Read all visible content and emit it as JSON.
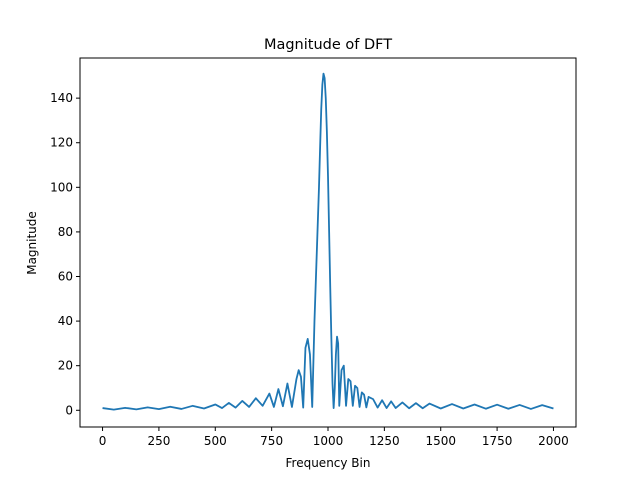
{
  "chart_data": {
    "type": "line",
    "title": "Magnitude of DFT",
    "xlabel": "Frequency Bin",
    "ylabel": "Magnitude",
    "xlim": [
      -100,
      2100
    ],
    "ylim": [
      -7.5,
      158
    ],
    "xticks": [
      0,
      250,
      500,
      750,
      1000,
      1250,
      1500,
      1750,
      2000
    ],
    "yticks": [
      0,
      20,
      40,
      60,
      80,
      100,
      120,
      140
    ],
    "grid": false,
    "legend": "none",
    "color": "#1f77b4",
    "x": [
      0,
      50,
      100,
      150,
      200,
      250,
      300,
      350,
      400,
      450,
      500,
      530,
      560,
      590,
      620,
      650,
      680,
      710,
      740,
      760,
      780,
      800,
      820,
      840,
      860,
      870,
      880,
      890,
      900,
      910,
      920,
      930,
      940,
      950,
      960,
      965,
      970,
      975,
      980,
      985,
      990,
      995,
      1000,
      1005,
      1010,
      1015,
      1020,
      1025,
      1030,
      1035,
      1040,
      1045,
      1050,
      1060,
      1070,
      1080,
      1090,
      1100,
      1110,
      1120,
      1130,
      1140,
      1150,
      1160,
      1170,
      1180,
      1200,
      1220,
      1240,
      1260,
      1280,
      1300,
      1330,
      1360,
      1390,
      1420,
      1450,
      1500,
      1550,
      1600,
      1650,
      1700,
      1750,
      1800,
      1850,
      1900,
      1950,
      2000
    ],
    "y": [
      1,
      0.3,
      1.1,
      0.4,
      1.3,
      0.5,
      1.6,
      0.6,
      2.0,
      0.8,
      2.6,
      1.0,
      3.3,
      1.2,
      4.2,
      1.5,
      5.4,
      2.0,
      7.5,
      1.5,
      9.5,
      1.8,
      12.0,
      1.5,
      14.0,
      18.0,
      15.0,
      1.2,
      28.0,
      32.0,
      25.0,
      1.5,
      40.0,
      70.0,
      100.0,
      118.0,
      135.0,
      146.0,
      151.0,
      149.0,
      140.0,
      125.0,
      105.0,
      80.0,
      55.0,
      32.0,
      12.0,
      1.0,
      10.0,
      25.0,
      33.0,
      30.0,
      2.0,
      18.0,
      20.0,
      2.0,
      14.0,
      13.0,
      2.0,
      11.0,
      10.0,
      1.5,
      8.0,
      7.0,
      1.3,
      6.0,
      5.0,
      1.2,
      4.5,
      1.0,
      4.0,
      1.0,
      3.5,
      0.9,
      3.2,
      0.9,
      3.0,
      0.8,
      2.8,
      0.8,
      2.6,
      0.7,
      2.5,
      0.7,
      2.4,
      0.6,
      2.3,
      0.8
    ]
  }
}
